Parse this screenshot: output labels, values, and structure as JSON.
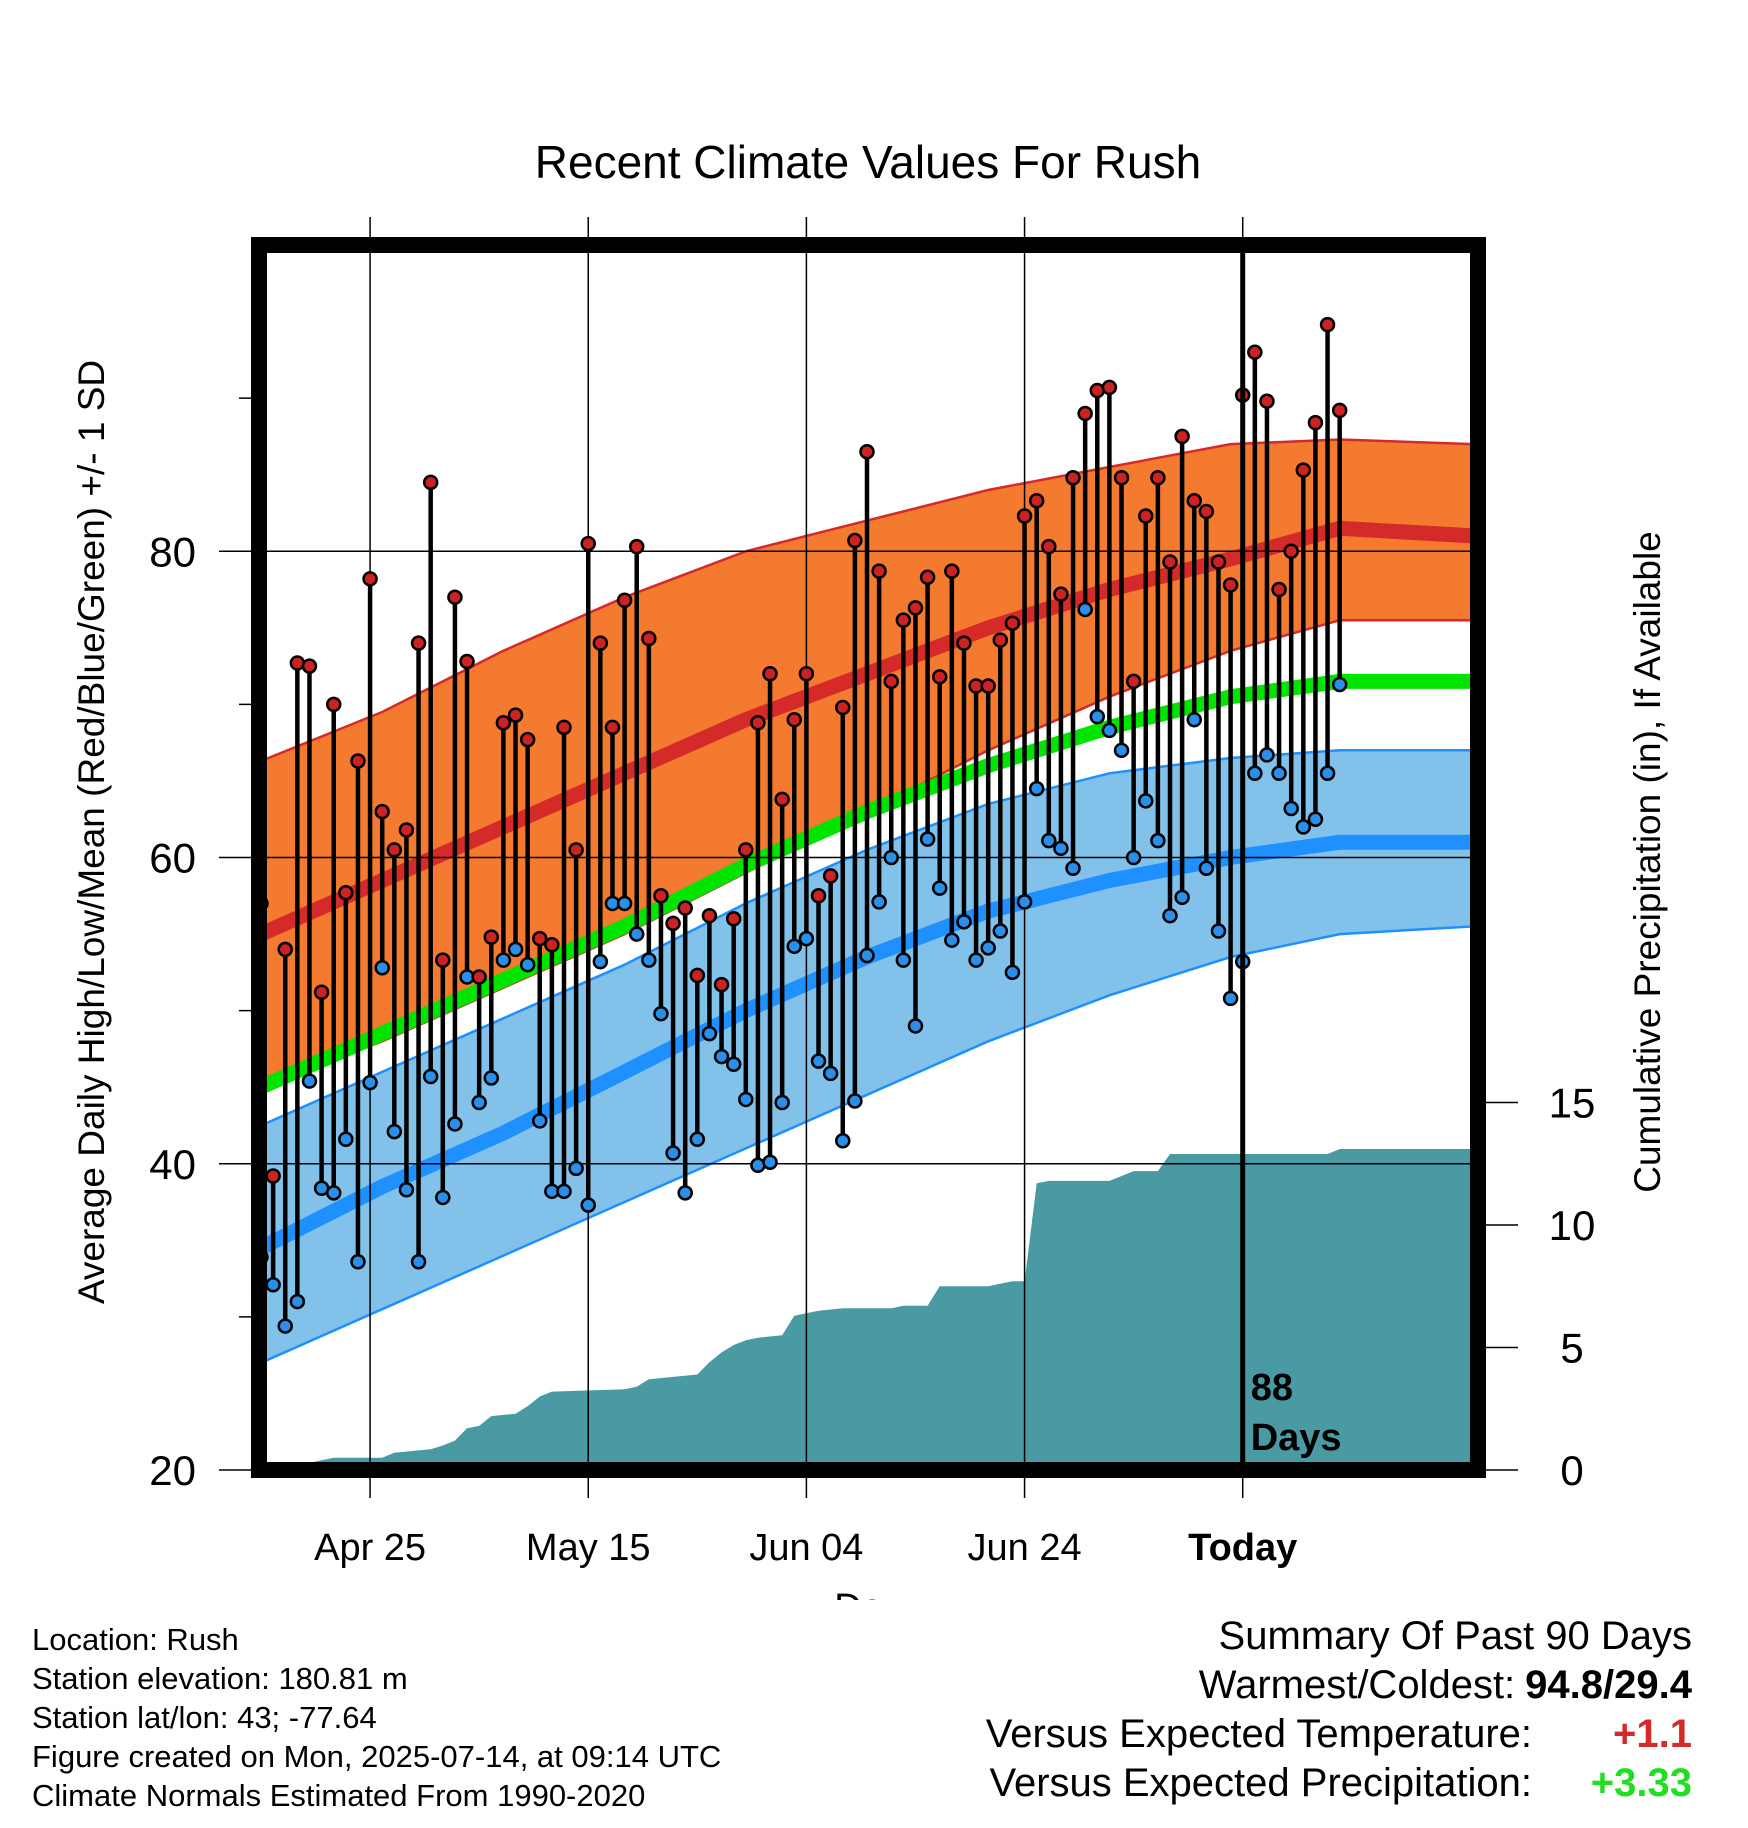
{
  "chart_data": {
    "type": "line",
    "title": "Recent Climate Values For Rush",
    "xlabel": "Day",
    "ylabel": "Average Daily High/Low/Mean (Red/Blue/Green) +/- 1 SD",
    "y2label": "Cumulative Precipitation (in), If Available",
    "ylim": [
      20,
      100
    ],
    "y2lim": [
      0,
      50
    ],
    "x_ticks": [
      "Apr 25",
      "May 15",
      "Jun 04",
      "Jun 24",
      "Today"
    ],
    "y_ticks": [
      20,
      40,
      60,
      80
    ],
    "y2_ticks": [
      0,
      5,
      10,
      15
    ],
    "today_label": "88\nDays",
    "colors": {
      "high_band": "#f37a2e",
      "high_line": "#d42a2a",
      "low_band": "#82c2ea",
      "low_line": "#1e90ff",
      "mean_line": "#00e400",
      "precip": "#4a9aa4",
      "high_marker": "#cc2222",
      "low_marker": "#2a8fe8"
    },
    "days_from_start": [
      0,
      89
    ],
    "normal_high_mean": [
      [
        0,
        55.0
      ],
      [
        10,
        58.5
      ],
      [
        20,
        62.0
      ],
      [
        30,
        65.5
      ],
      [
        40,
        69.0
      ],
      [
        50,
        72.0
      ],
      [
        60,
        75.0
      ],
      [
        70,
        77.5
      ],
      [
        80,
        79.5
      ],
      [
        89,
        81.5
      ],
      [
        100,
        81.0
      ]
    ],
    "normal_high_plus_sd": [
      [
        0,
        66.3
      ],
      [
        10,
        69.5
      ],
      [
        20,
        73.5
      ],
      [
        30,
        77.0
      ],
      [
        40,
        80.0
      ],
      [
        50,
        82.0
      ],
      [
        60,
        84.0
      ],
      [
        70,
        85.5
      ],
      [
        80,
        87.0
      ],
      [
        89,
        87.3
      ],
      [
        100,
        87.0
      ]
    ],
    "normal_high_minus_sd": [
      [
        0,
        45.0
      ],
      [
        10,
        48.0
      ],
      [
        20,
        51.5
      ],
      [
        30,
        55.0
      ],
      [
        40,
        59.0
      ],
      [
        50,
        63.0
      ],
      [
        60,
        67.0
      ],
      [
        70,
        70.5
      ],
      [
        80,
        73.5
      ],
      [
        89,
        75.5
      ],
      [
        100,
        75.5
      ]
    ],
    "normal_low_mean": [
      [
        0,
        34.5
      ],
      [
        10,
        38.5
      ],
      [
        20,
        42.0
      ],
      [
        30,
        46.0
      ],
      [
        40,
        50.0
      ],
      [
        50,
        53.5
      ],
      [
        60,
        56.5
      ],
      [
        70,
        58.5
      ],
      [
        80,
        60.0
      ],
      [
        89,
        61.0
      ],
      [
        100,
        61.0
      ]
    ],
    "normal_low_plus_sd": [
      [
        0,
        42.5
      ],
      [
        10,
        46.0
      ],
      [
        20,
        49.5
      ],
      [
        30,
        53.0
      ],
      [
        40,
        57.0
      ],
      [
        50,
        60.5
      ],
      [
        60,
        63.5
      ],
      [
        70,
        65.5
      ],
      [
        80,
        66.5
      ],
      [
        89,
        67.0
      ],
      [
        100,
        67.0
      ]
    ],
    "normal_low_minus_sd": [
      [
        0,
        27.0
      ],
      [
        10,
        30.5
      ],
      [
        20,
        34.0
      ],
      [
        30,
        37.5
      ],
      [
        40,
        41.0
      ],
      [
        50,
        44.5
      ],
      [
        60,
        48.0
      ],
      [
        70,
        51.0
      ],
      [
        80,
        53.5
      ],
      [
        89,
        55.0
      ],
      [
        100,
        55.5
      ]
    ],
    "normal_mean": [
      [
        0,
        45.0
      ],
      [
        10,
        48.5
      ],
      [
        20,
        52.0
      ],
      [
        30,
        55.5
      ],
      [
        40,
        59.5
      ],
      [
        50,
        63.0
      ],
      [
        60,
        66.0
      ],
      [
        70,
        68.5
      ],
      [
        80,
        70.5
      ],
      [
        89,
        71.5
      ],
      [
        100,
        71.5
      ]
    ],
    "daily_high": [
      57.0,
      39.2,
      54.0,
      72.7,
      72.5,
      51.2,
      70.0,
      57.7,
      66.3,
      78.2,
      63.0,
      60.5,
      61.8,
      74.0,
      84.5,
      53.3,
      77.0,
      72.8,
      52.2,
      54.8,
      68.8,
      69.3,
      67.7,
      54.7,
      54.3,
      68.5,
      60.5,
      80.5,
      74.0,
      68.5,
      76.8,
      80.3,
      74.3,
      57.5,
      55.7,
      56.7,
      52.3,
      56.2,
      51.7,
      56.0,
      60.5,
      68.8,
      72.0,
      63.8,
      69.0,
      72.0,
      57.5,
      58.8,
      69.8,
      80.7,
      86.5,
      78.7,
      71.5,
      75.5,
      76.3,
      78.3,
      71.8,
      78.7,
      74.0,
      71.2,
      71.2,
      74.2,
      75.3,
      82.3,
      83.3,
      80.3,
      77.2,
      84.8,
      89.0,
      90.5,
      90.7,
      84.8,
      71.5,
      82.3,
      84.8,
      79.3,
      87.5,
      83.3,
      82.6,
      79.3,
      77.8,
      90.2,
      93.0,
      89.8,
      77.5,
      80.0,
      85.3,
      88.4,
      94.8,
      89.2
    ],
    "daily_low": [
      33.9,
      32.1,
      29.4,
      31.0,
      45.4,
      38.4,
      38.1,
      41.6,
      33.6,
      45.3,
      52.8,
      42.1,
      38.3,
      33.6,
      45.7,
      37.8,
      42.6,
      52.2,
      44.0,
      45.6,
      53.3,
      54.0,
      53.0,
      42.8,
      38.2,
      38.2,
      39.7,
      37.3,
      53.2,
      57.0,
      57.0,
      55.0,
      53.3,
      49.8,
      40.7,
      38.1,
      41.6,
      48.5,
      47.0,
      46.5,
      44.2,
      39.9,
      40.1,
      44.0,
      54.2,
      54.7,
      46.7,
      45.9,
      41.5,
      44.1,
      53.6,
      57.1,
      60.0,
      53.3,
      49.0,
      61.2,
      58.0,
      54.6,
      55.8,
      53.3,
      54.1,
      55.2,
      52.5,
      57.1,
      64.5,
      61.1,
      60.6,
      59.3,
      76.2,
      69.2,
      68.3,
      67.0,
      60.0,
      63.7,
      61.1,
      56.2,
      57.4,
      69.0,
      59.3,
      55.2,
      50.8,
      53.2,
      65.5,
      66.7,
      65.5,
      63.2,
      62.0,
      62.5,
      65.5,
      71.3
    ],
    "precip_cumulative": [
      [
        0,
        0
      ],
      [
        3,
        0
      ],
      [
        4,
        0.3
      ],
      [
        5,
        0.4
      ],
      [
        6,
        0.5
      ],
      [
        10,
        0.5
      ],
      [
        11,
        0.7
      ],
      [
        13,
        0.8
      ],
      [
        14,
        0.85
      ],
      [
        15,
        1.0
      ],
      [
        16,
        1.2
      ],
      [
        17,
        1.7
      ],
      [
        18,
        1.8
      ],
      [
        19,
        2.2
      ],
      [
        20,
        2.25
      ],
      [
        21,
        2.3
      ],
      [
        22,
        2.6
      ],
      [
        23,
        3.0
      ],
      [
        24,
        3.2
      ],
      [
        30,
        3.3
      ],
      [
        31,
        3.4
      ],
      [
        32,
        3.7
      ],
      [
        34,
        3.8
      ],
      [
        36,
        3.9
      ],
      [
        37,
        4.4
      ],
      [
        38,
        4.8
      ],
      [
        39,
        5.1
      ],
      [
        40,
        5.3
      ],
      [
        41,
        5.4
      ],
      [
        43,
        5.5
      ],
      [
        44,
        6.3
      ],
      [
        45,
        6.4
      ],
      [
        46,
        6.5
      ],
      [
        48,
        6.6
      ],
      [
        52,
        6.6
      ],
      [
        53,
        6.7
      ],
      [
        55,
        6.7
      ],
      [
        56,
        7.5
      ],
      [
        60,
        7.5
      ],
      [
        61,
        7.6
      ],
      [
        62,
        7.7
      ],
      [
        63,
        7.7
      ],
      [
        64,
        11.7
      ],
      [
        65,
        11.8
      ],
      [
        70,
        11.8
      ],
      [
        71,
        12.0
      ],
      [
        72,
        12.2
      ],
      [
        74,
        12.2
      ],
      [
        75,
        12.9
      ],
      [
        80,
        12.9
      ],
      [
        81,
        12.9
      ],
      [
        88,
        12.9
      ],
      [
        89,
        13.1
      ],
      [
        100,
        13.1
      ]
    ]
  },
  "info": {
    "location": "Location: Rush",
    "elevation": "Station elevation: 180.81 m",
    "latlon": "Station lat/lon: 43; -77.64",
    "created": "Figure created on Mon, 2025-07-14, at 09:14 UTC",
    "normals": "Climate Normals Estimated From 1990-2020"
  },
  "summary": {
    "title": "Summary Of Past 90 Days",
    "warm_cold_label": "Warmest/Coldest:",
    "warm_cold_value": "94.8/29.4",
    "temp_label": "Versus Expected Temperature:",
    "temp_value": "+1.1",
    "temp_color": "#d42a2a",
    "precip_label": "Versus Expected Precipitation:",
    "precip_value": "+3.33",
    "precip_color": "#22dd22"
  }
}
